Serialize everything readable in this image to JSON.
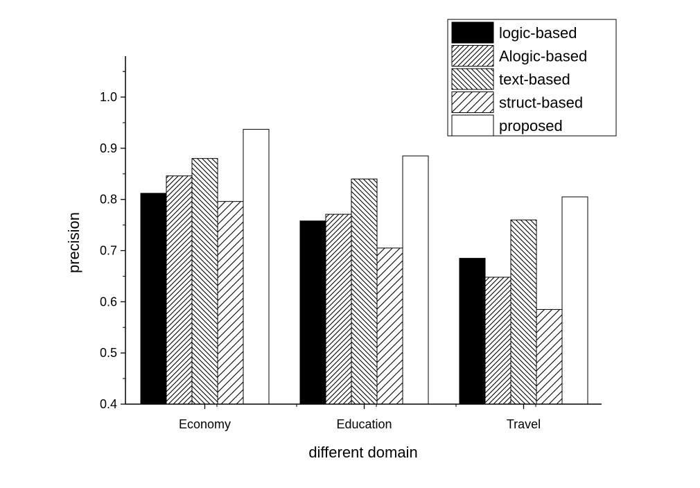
{
  "chart_data": {
    "type": "bar",
    "title": "",
    "xlabel": "different domain",
    "ylabel": "precision",
    "categories": [
      "Economy",
      "Education",
      "Travel"
    ],
    "ylim": [
      0.4,
      1.08
    ],
    "yticks": [
      0.4,
      0.5,
      0.6,
      0.7,
      0.8,
      0.9,
      1.0
    ],
    "ytick_labels": [
      "0.4",
      "0.5",
      "0.6",
      "0.7",
      "0.8",
      "0.9",
      "1.0"
    ],
    "grid": false,
    "legend_position": "top-right",
    "series": [
      {
        "name": "logic-based",
        "values": [
          0.812,
          0.758,
          0.685
        ],
        "fill": "solid",
        "color": "#000000"
      },
      {
        "name": "Alogic-based",
        "values": [
          0.846,
          0.771,
          0.648
        ],
        "fill": "hatch-forward",
        "color": "#000000"
      },
      {
        "name": "text-based",
        "values": [
          0.88,
          0.84,
          0.76
        ],
        "fill": "hatch-back",
        "color": "#000000"
      },
      {
        "name": "struct-based",
        "values": [
          0.796,
          0.705,
          0.585
        ],
        "fill": "hatch-forward-sparse",
        "color": "#000000"
      },
      {
        "name": "proposed",
        "values": [
          0.937,
          0.885,
          0.805
        ],
        "fill": "empty",
        "color": "#ffffff"
      }
    ]
  }
}
